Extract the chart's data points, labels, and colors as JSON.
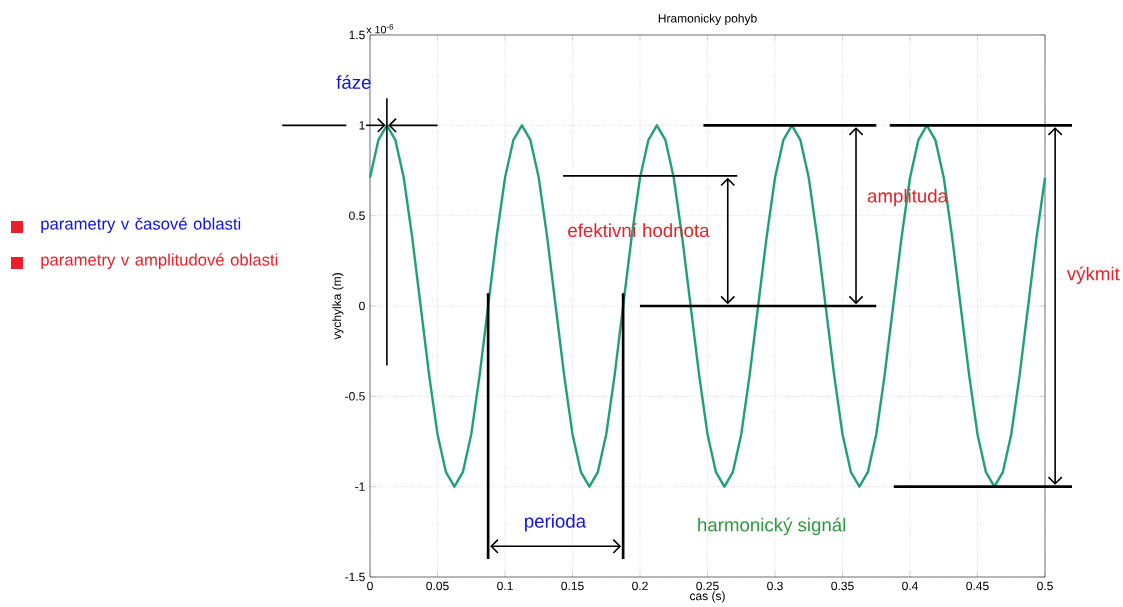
{
  "chart_data": {
    "type": "line",
    "title": "Hramonicky pohyb",
    "xlabel": "cas (s)",
    "ylabel": "vychylka (m)",
    "x": [
      0,
      0.00625,
      0.0125,
      0.01875,
      0.025,
      0.03125,
      0.0375,
      0.04375,
      0.05,
      0.05625,
      0.0625,
      0.06875,
      0.075,
      0.08125,
      0.0875,
      0.09375,
      0.1,
      0.10625,
      0.1125,
      0.11875,
      0.125,
      0.13125,
      0.1375,
      0.14375,
      0.15,
      0.15625,
      0.1625,
      0.16875,
      0.175,
      0.18125,
      0.1875,
      0.19375,
      0.2,
      0.20625,
      0.2125,
      0.21875,
      0.225,
      0.23125,
      0.2375,
      0.24375,
      0.25,
      0.25625,
      0.2625,
      0.26875,
      0.275,
      0.28125,
      0.2875,
      0.29375,
      0.3,
      0.30625,
      0.3125,
      0.31875,
      0.325,
      0.33125,
      0.3375,
      0.34375,
      0.35,
      0.35625,
      0.3625,
      0.36875,
      0.375,
      0.38125,
      0.3875,
      0.39375,
      0.4,
      0.40625,
      0.4125,
      0.41875,
      0.425,
      0.43125,
      0.4375,
      0.44375,
      0.45,
      0.45625,
      0.4625,
      0.46875,
      0.475,
      0.48125,
      0.4875,
      0.49375,
      0.5
    ],
    "series": [
      {
        "color": "#20a07a",
        "values": [
          0.71,
          0.92,
          1,
          0.92,
          0.71,
          0.38,
          0,
          -0.38,
          -0.71,
          -0.92,
          -1,
          -0.92,
          -0.71,
          -0.38,
          0,
          0.38,
          0.71,
          0.92,
          1,
          0.92,
          0.71,
          0.38,
          0,
          -0.38,
          -0.71,
          -0.92,
          -1,
          -0.92,
          -0.71,
          -0.38,
          0,
          0.38,
          0.71,
          0.92,
          1,
          0.92,
          0.71,
          0.38,
          0,
          -0.38,
          -0.71,
          -0.92,
          -1,
          -0.92,
          -0.71,
          -0.38,
          0,
          0.38,
          0.71,
          0.92,
          1,
          0.92,
          0.71,
          0.38,
          0,
          -0.38,
          -0.71,
          -0.92,
          -1,
          -0.92,
          -0.71,
          -0.38,
          0,
          0.38,
          0.71,
          0.92,
          1,
          0.92,
          0.71,
          0.38,
          0,
          -0.38,
          -0.71,
          -0.92,
          -1,
          -0.92,
          -0.71,
          -0.38,
          0,
          0.38,
          0.71
        ]
      }
    ],
    "xlim": [
      0,
      0.5
    ],
    "ylim": [
      -1.5,
      1.5
    ],
    "xticks": [
      0,
      0.05,
      0.1,
      0.15,
      0.2,
      0.25,
      0.3,
      0.35,
      0.4,
      0.45,
      0.5
    ],
    "yticks": [
      -1.5,
      -1,
      -0.5,
      0,
      0.5,
      1,
      1.5
    ],
    "grid": true,
    "marker": "none",
    "line_style": "solid",
    "annotations": [
      "x 10$^{-6}$",
      "fáze",
      "perioda",
      "efektivní hodnota",
      "amplituda",
      "výkmit",
      "harmonický signál",
      "parametry v časové oblasti",
      "parametry v amplitudové oblasti"
    ]
  }
}
